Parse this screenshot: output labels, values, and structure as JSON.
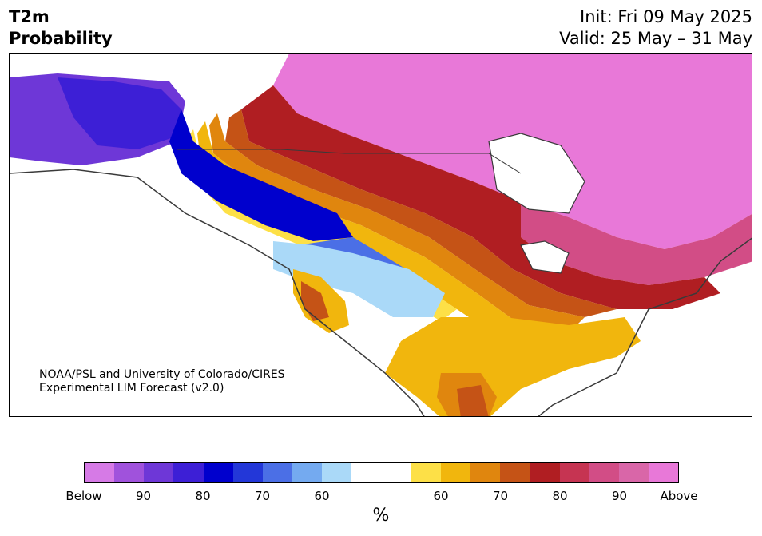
{
  "header": {
    "title_line1": "T2m",
    "title_line2": "Probability",
    "init_line": "Init: Fri 09 May 2025",
    "valid_line": "Valid: 25 May – 31 May"
  },
  "credit": {
    "line1": "NOAA/PSL and University of Colorado/CIRES",
    "line2": "Experimental LIM Forecast (v2.0)"
  },
  "colorbar": {
    "colors": [
      "#d67ae6",
      "#a052dc",
      "#6e37d7",
      "#3d1fd6",
      "#0000cd",
      "#2337d8",
      "#4b6fe6",
      "#74aaf0",
      "#aad9f8",
      "#ffffff",
      "#ffffff",
      "#fde047",
      "#f1b60d",
      "#e0860e",
      "#c55316",
      "#b01e22",
      "#c63452",
      "#d24d86",
      "#d966a8",
      "#e878d8"
    ],
    "tick_labels": [
      "Below",
      "90",
      "80",
      "70",
      "60",
      "60",
      "70",
      "80",
      "90",
      "Above"
    ],
    "unit": "%"
  },
  "map": {
    "projection": "lambert-conformal",
    "region": "North America",
    "palette": {
      "ocean": "#ffffff",
      "coast": "#3a3a3a",
      "below_far": "#6e37d7",
      "below_strong": "#0000cd",
      "below_mid": "#4b6fe6",
      "below_weak": "#aad9f8",
      "above_weak": "#fde047",
      "above_mid": "#f1b60d",
      "above_orange": "#e0860e",
      "above_rust": "#c55316",
      "above_red": "#b01e22",
      "above_rose": "#c63452",
      "above_pink": "#d966a8",
      "above_far": "#e878d8"
    }
  }
}
